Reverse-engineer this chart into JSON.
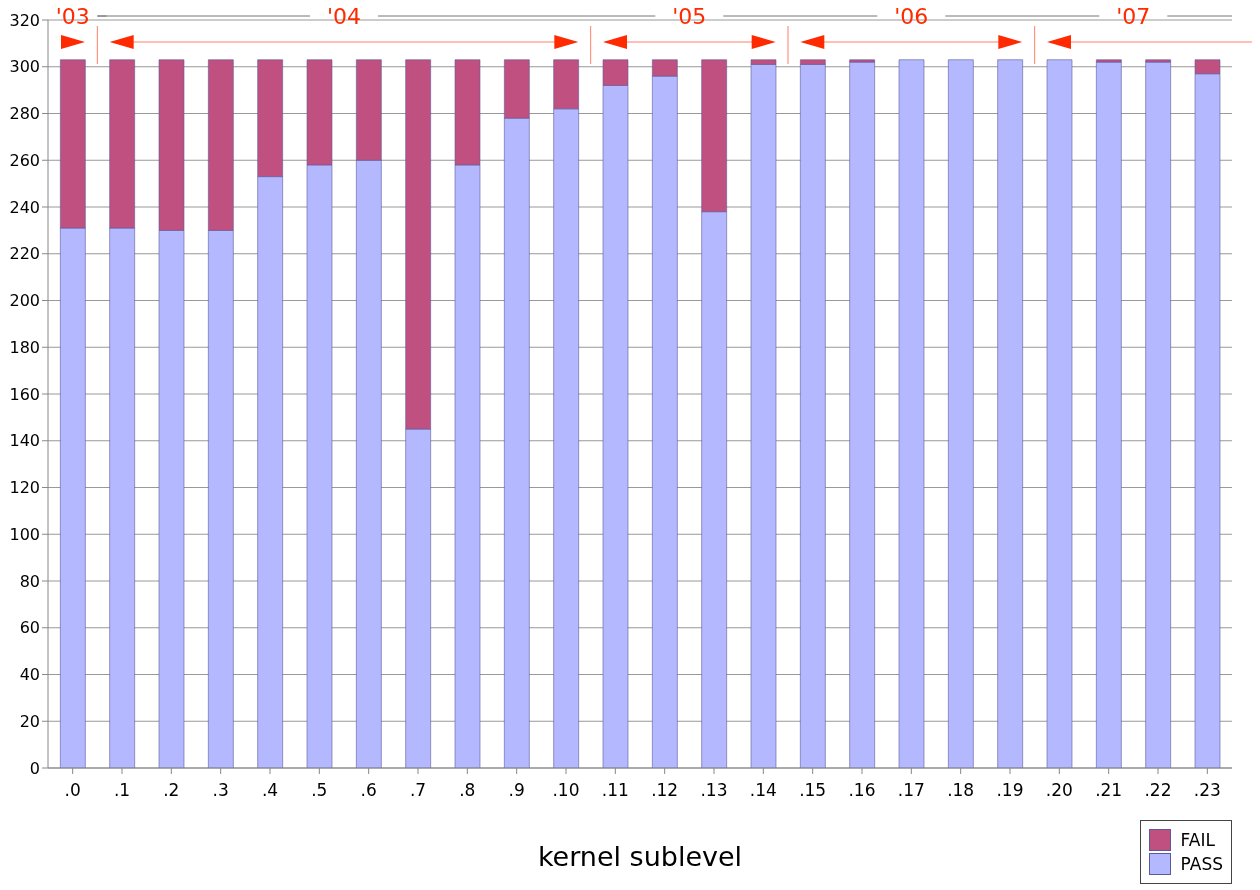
{
  "chart_data": {
    "type": "bar",
    "stacked": true,
    "xlabel": "kernel sublevel",
    "categories": [
      ".0",
      ".1",
      ".2",
      ".3",
      ".4",
      ".5",
      ".6",
      ".7",
      ".8",
      ".9",
      ".10",
      ".11",
      ".12",
      ".13",
      ".14",
      ".15",
      ".16",
      ".17",
      ".18",
      ".19",
      ".20",
      ".21",
      ".22",
      ".23"
    ],
    "series": [
      {
        "name": "PASS",
        "color": "#b4b8ff",
        "values": [
          231,
          231,
          230,
          230,
          253,
          258,
          260,
          145,
          258,
          278,
          282,
          292,
          296,
          238,
          301,
          301,
          302,
          303,
          303,
          303,
          303,
          302,
          302,
          297
        ]
      },
      {
        "name": "FAIL",
        "color": "#c0507f",
        "values": [
          72,
          72,
          73,
          73,
          50,
          45,
          43,
          158,
          45,
          25,
          21,
          11,
          7,
          65,
          2,
          2,
          1,
          0,
          0,
          0,
          0,
          1,
          1,
          6
        ]
      }
    ],
    "ylim": [
      0,
      320
    ],
    "yticks": [
      0,
      20,
      40,
      60,
      80,
      100,
      120,
      140,
      160,
      180,
      200,
      220,
      240,
      260,
      280,
      300,
      320
    ],
    "grid": "y",
    "legend": "bottom right",
    "annotations": [
      "'03",
      "'04",
      "'05",
      "'06",
      "'07"
    ]
  }
}
